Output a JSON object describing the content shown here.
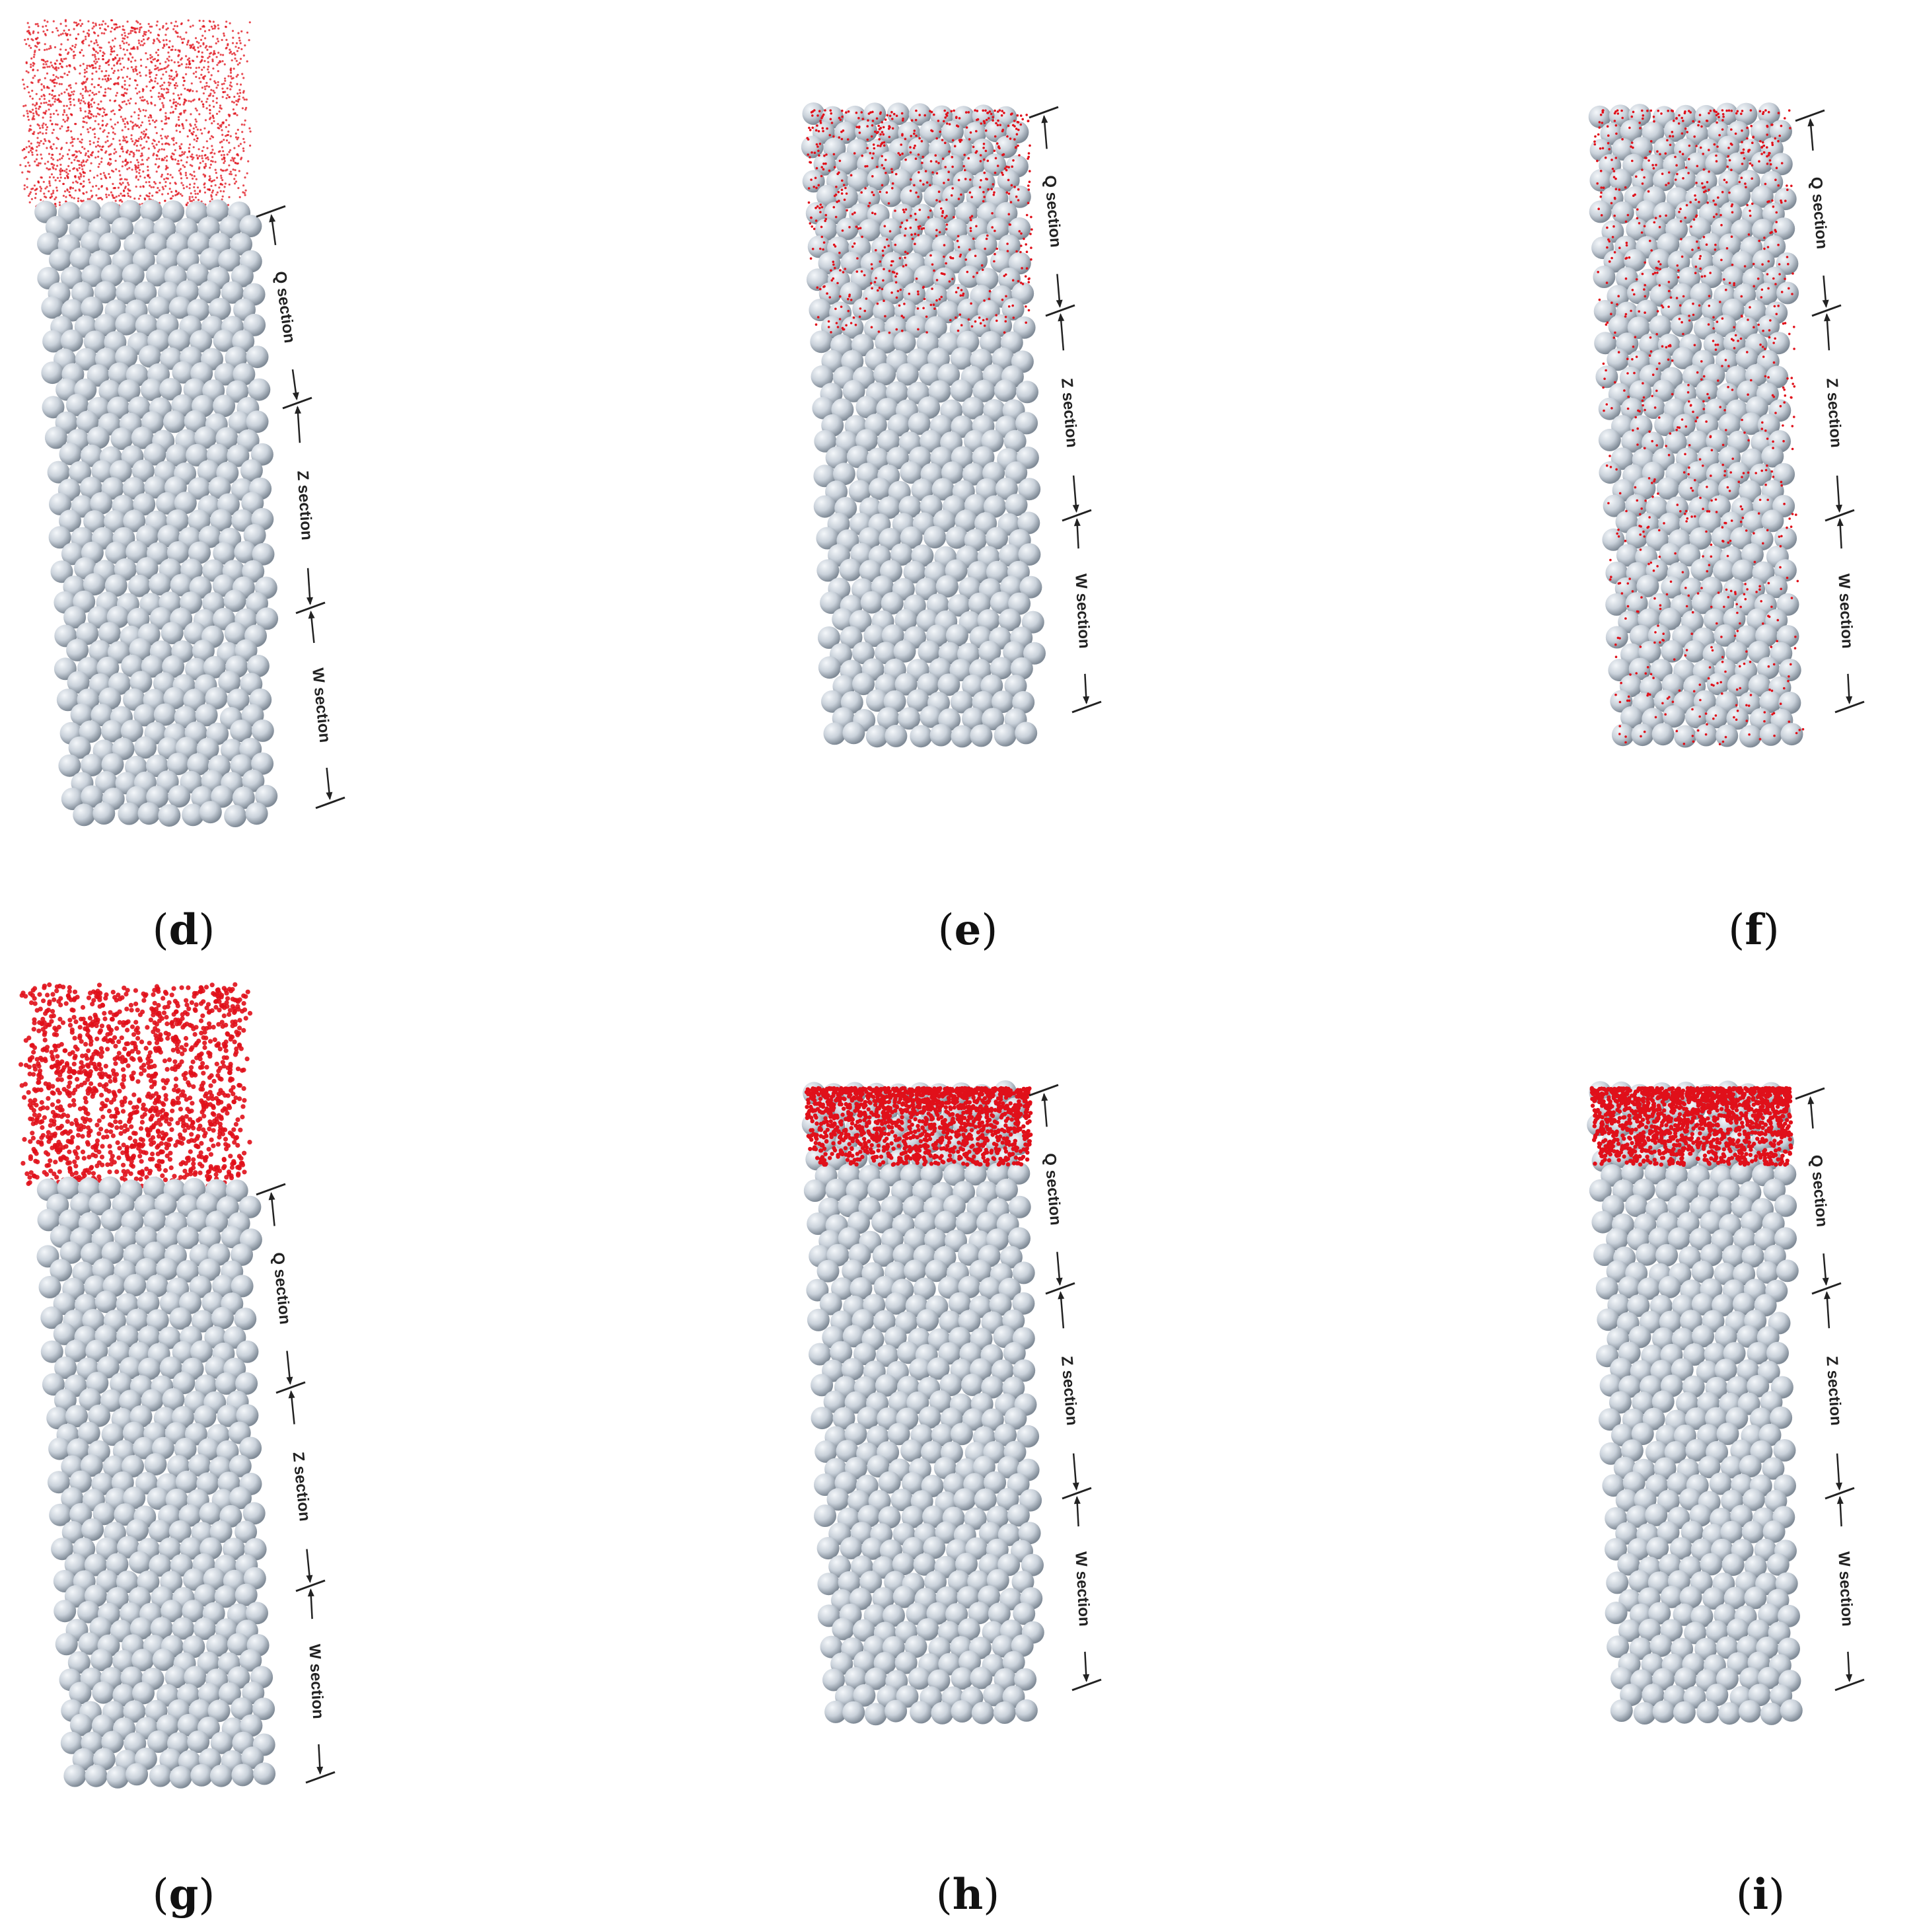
{
  "panels": [
    {
      "label": "d",
      "mode": "falling-fine",
      "particle_color": "#e0101a"
    },
    {
      "label": "e",
      "mode": "sparse-fine",
      "particle_color": "#e0101a"
    },
    {
      "label": "f",
      "mode": "dispersed-fine",
      "particle_color": "#e0101a"
    },
    {
      "label": "g",
      "mode": "falling-coarse",
      "particle_color": "#e0101a"
    },
    {
      "label": "h",
      "mode": "surface-clogged",
      "particle_color": "#e0101a"
    },
    {
      "label": "i",
      "mode": "surface-clogged",
      "particle_color": "#e0101a"
    }
  ],
  "sections": [
    "Q section",
    "Z section",
    "W section"
  ],
  "colors": {
    "spheres": "#c9d1da",
    "sphere_highlight": "#f4f7fa",
    "sphere_shadow": "#7f8a96",
    "particles": "#e0101a"
  }
}
